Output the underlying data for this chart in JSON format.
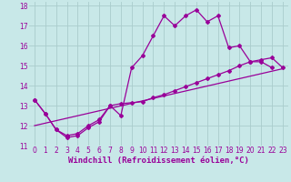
{
  "xlabel": "Windchill (Refroidissement éolien,°C)",
  "bg_color": "#c8e8e8",
  "grid_color": "#aacccc",
  "line_color": "#990099",
  "xlim": [
    -0.5,
    23.5
  ],
  "ylim": [
    11,
    18.2
  ],
  "xticks": [
    0,
    1,
    2,
    3,
    4,
    5,
    6,
    7,
    8,
    9,
    10,
    11,
    12,
    13,
    14,
    15,
    16,
    17,
    18,
    19,
    20,
    21,
    22,
    23
  ],
  "yticks": [
    11,
    12,
    13,
    14,
    15,
    16,
    17,
    18
  ],
  "curve1_x": [
    0,
    1,
    2,
    3,
    4,
    5,
    6,
    7,
    8,
    9,
    10,
    11,
    12,
    13,
    14,
    15,
    16,
    17,
    18,
    19,
    20,
    21,
    22
  ],
  "curve1_y": [
    13.3,
    12.6,
    11.8,
    11.4,
    11.5,
    11.9,
    12.2,
    13.0,
    12.5,
    14.9,
    15.5,
    16.5,
    17.5,
    17.0,
    17.5,
    17.8,
    17.2,
    17.5,
    15.9,
    16.0,
    15.2,
    15.2,
    14.9
  ],
  "curve2_x": [
    0,
    1,
    2,
    3,
    4,
    5,
    6,
    7,
    8,
    9,
    10,
    11,
    12,
    13,
    14,
    15,
    16,
    17,
    18,
    19,
    20,
    21,
    22,
    23
  ],
  "curve2_y": [
    13.3,
    12.6,
    11.8,
    11.5,
    11.6,
    12.0,
    12.3,
    13.0,
    13.1,
    13.15,
    13.2,
    13.4,
    13.55,
    13.75,
    13.95,
    14.15,
    14.35,
    14.55,
    14.75,
    15.0,
    15.2,
    15.3,
    15.4,
    14.9
  ],
  "curve3_x": [
    0,
    23
  ],
  "curve3_y": [
    12.0,
    14.85
  ],
  "lw": 0.9,
  "marker": "D",
  "ms": 2.0,
  "tick_fontsize": 5.5,
  "xlabel_fontsize": 6.5
}
